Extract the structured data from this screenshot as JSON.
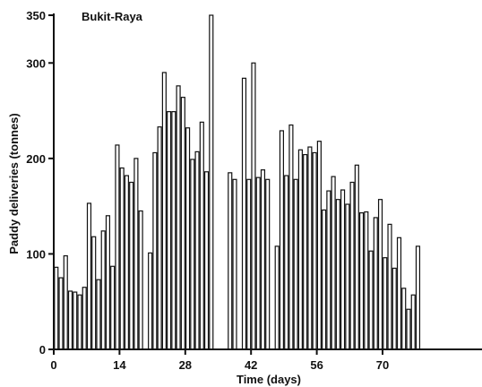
{
  "chart_data": {
    "type": "bar",
    "title": "Bukit-Raya",
    "xlabel": "Time (days)",
    "ylabel": "Paddy deliveries (tonnes)",
    "xlim": [
      0,
      80
    ],
    "ylim": [
      0,
      350
    ],
    "xticks": [
      0,
      14,
      28,
      42,
      56,
      70
    ],
    "yticks": [
      0,
      100,
      200,
      300,
      350
    ],
    "grid": false,
    "bar_color": "#111111",
    "series": [
      {
        "x": [
          0,
          1,
          2,
          3,
          4,
          5,
          6,
          7,
          8,
          9,
          10,
          11,
          12,
          13,
          14,
          15,
          16,
          17,
          18,
          19,
          20,
          21,
          22,
          23,
          24,
          25,
          26,
          27,
          28,
          29,
          30,
          31,
          32,
          33,
          34,
          35,
          36,
          37,
          38,
          39,
          40,
          41,
          42,
          43,
          44,
          45,
          46,
          47,
          48,
          49,
          50,
          51,
          52,
          53,
          54,
          55,
          56,
          57,
          58,
          59,
          60,
          61,
          62,
          63,
          64,
          65,
          66,
          67,
          68,
          69,
          70,
          71,
          72,
          73,
          74,
          75,
          76,
          77,
          78,
          79
        ],
        "values": [
          86,
          75,
          98,
          61,
          60,
          57,
          65,
          153,
          118,
          73,
          124,
          140,
          87,
          214,
          190,
          182,
          175,
          200,
          145,
          0,
          101,
          206,
          233,
          290,
          249,
          249,
          276,
          264,
          232,
          199,
          207,
          238,
          186,
          350,
          0,
          0,
          0,
          185,
          178,
          0,
          284,
          178,
          300,
          180,
          188,
          178,
          0,
          108,
          229,
          182,
          235,
          178,
          209,
          204,
          212,
          206,
          218,
          146,
          166,
          181,
          157,
          167,
          152,
          175,
          193,
          143,
          144,
          103,
          138,
          157,
          96,
          131,
          85,
          117,
          64,
          42,
          57,
          108,
          0,
          0
        ]
      }
    ]
  }
}
